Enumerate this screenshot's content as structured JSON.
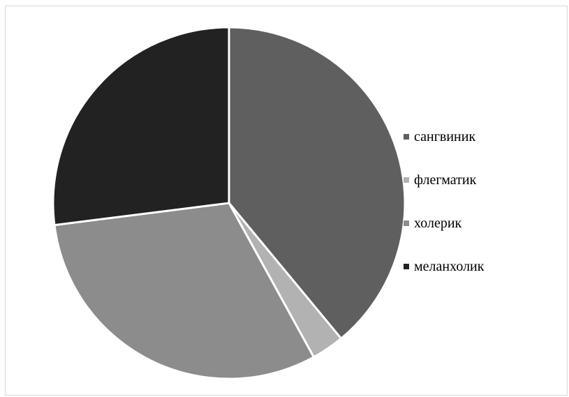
{
  "chart_data": {
    "type": "pie",
    "title": "",
    "categories": [
      "сангвиник",
      "флегматик",
      "холерик",
      "меланхолик"
    ],
    "values": [
      39,
      3,
      31,
      27
    ],
    "colors": [
      "#5f5f5f",
      "#b2b2b2",
      "#8c8c8c",
      "#222222"
    ],
    "legend_position": "right",
    "start_angle_deg": 0,
    "direction": "clockwise"
  }
}
